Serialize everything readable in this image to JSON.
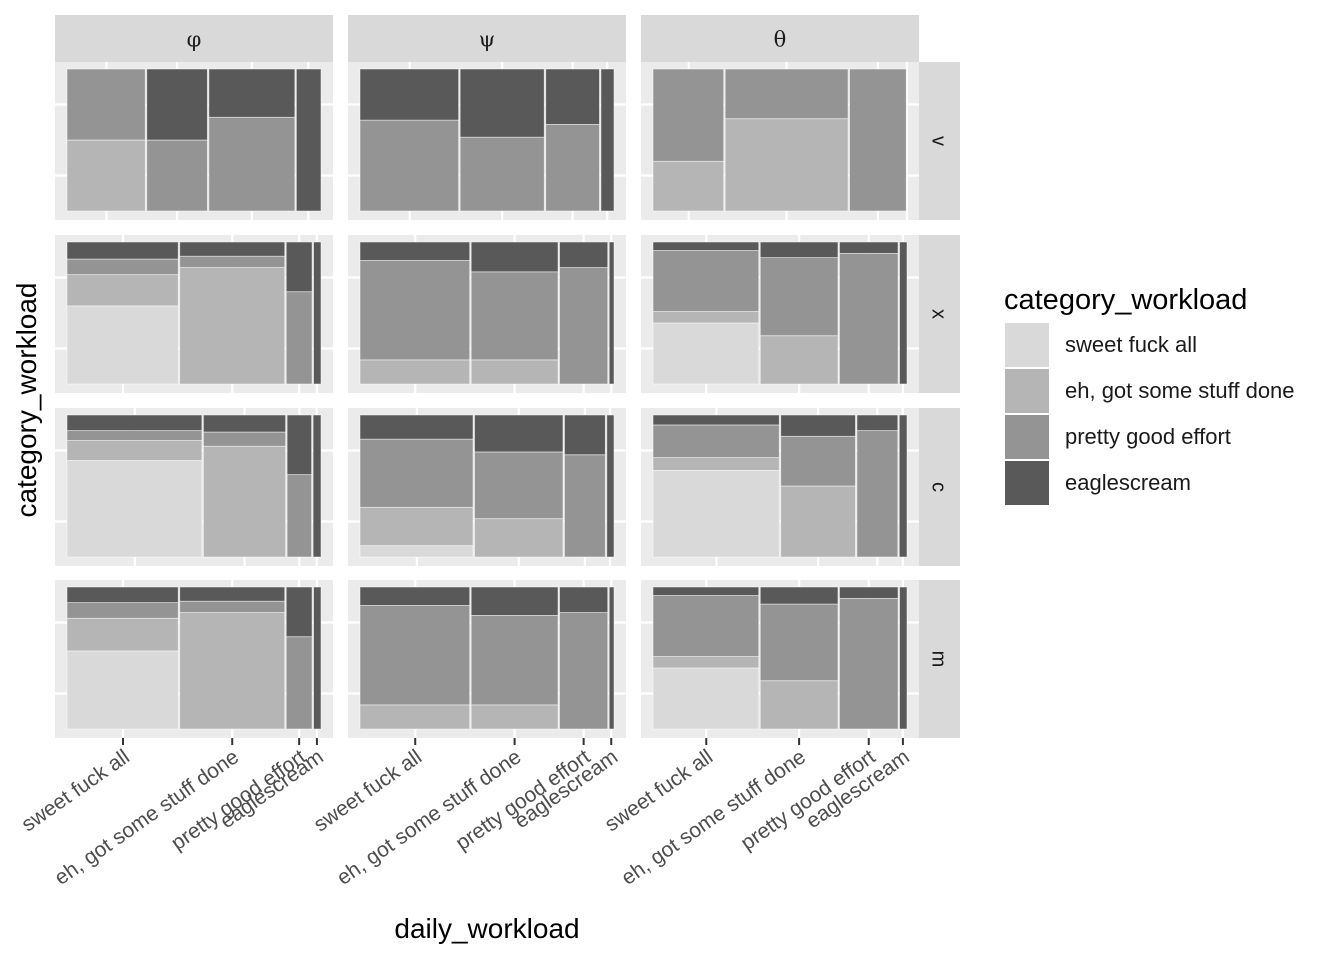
{
  "chart_data": {
    "type": "mosaic",
    "xlabel": "daily_workload",
    "ylabel": "category_workload",
    "legend": {
      "title": "category_workload",
      "position": "right",
      "items": [
        {
          "label": "sweet fuck all",
          "color": "#d9d9d9"
        },
        {
          "label": "eh, got some stuff done",
          "color": "#b5b5b5"
        },
        {
          "label": "pretty good effort",
          "color": "#949494"
        },
        {
          "label": "eaglescream",
          "color": "#595959"
        }
      ]
    },
    "col_facets": [
      "φ",
      "ψ",
      "θ"
    ],
    "row_facets": [
      "v",
      "x",
      "c",
      "m"
    ],
    "categories": [
      "sweet fuck all",
      "eh, got some stuff done",
      "pretty good effort",
      "eaglescream"
    ],
    "panels": [
      {
        "col": "φ",
        "row": "v",
        "x_widths": [
          0.28,
          0.22,
          0.31,
          0.09
        ],
        "y_props": [
          [
            0,
            0.5,
            0.5,
            0
          ],
          [
            0,
            0,
            0.5,
            0.5
          ],
          [
            0,
            0,
            0.66,
            0.34
          ],
          [
            0,
            0,
            0,
            1
          ]
        ]
      },
      {
        "col": "ψ",
        "row": "v",
        "x_widths": [
          0.36,
          0.31,
          0.2,
          0.05
        ],
        "y_props": [
          [
            0,
            0,
            0.64,
            0.36
          ],
          [
            0,
            0,
            0.52,
            0.48
          ],
          [
            0,
            0,
            0.61,
            0.39
          ],
          [
            0,
            0,
            0,
            1
          ]
        ]
      },
      {
        "col": "θ",
        "row": "v",
        "x_widths": [
          0.27,
          0.47,
          0.22,
          0
        ],
        "y_props": [
          [
            0,
            0.35,
            0.65,
            0
          ],
          [
            0,
            0.65,
            0.35,
            0
          ],
          [
            0,
            0,
            1,
            0
          ],
          [
            0,
            0,
            0,
            0
          ]
        ]
      },
      {
        "col": "φ",
        "row": "x",
        "x_widths": [
          0.41,
          0.39,
          0.1,
          0.03
        ],
        "y_props": [
          [
            0.55,
            0.22,
            0.11,
            0.12
          ],
          [
            0,
            0.82,
            0.08,
            0.1
          ],
          [
            0,
            0,
            0.65,
            0.35
          ],
          [
            0,
            0,
            0,
            1
          ]
        ]
      },
      {
        "col": "ψ",
        "row": "x",
        "x_widths": [
          0.4,
          0.32,
          0.18,
          0.02
        ],
        "y_props": [
          [
            0,
            0.17,
            0.7,
            0.13
          ],
          [
            0,
            0.17,
            0.62,
            0.21
          ],
          [
            0,
            0,
            0.82,
            0.18
          ],
          [
            0,
            0,
            0,
            1
          ]
        ]
      },
      {
        "col": "θ",
        "row": "x",
        "x_widths": [
          0.39,
          0.29,
          0.22,
          0.03
        ],
        "y_props": [
          [
            0.43,
            0.08,
            0.43,
            0.06
          ],
          [
            0,
            0.34,
            0.55,
            0.11
          ],
          [
            0,
            0,
            0.92,
            0.08
          ],
          [
            0,
            0,
            0,
            1
          ]
        ]
      },
      {
        "col": "φ",
        "row": "c",
        "x_widths": [
          0.47,
          0.29,
          0.09,
          0.03
        ],
        "y_props": [
          [
            0.68,
            0.14,
            0.07,
            0.11
          ],
          [
            0,
            0.78,
            0.1,
            0.12
          ],
          [
            0,
            0,
            0.58,
            0.42
          ],
          [
            0,
            0,
            0,
            1
          ]
        ]
      },
      {
        "col": "ψ",
        "row": "c",
        "x_widths": [
          0.43,
          0.34,
          0.16,
          0.03
        ],
        "y_props": [
          [
            0.08,
            0.27,
            0.48,
            0.17
          ],
          [
            0,
            0.27,
            0.47,
            0.26
          ],
          [
            0,
            0,
            0.72,
            0.28
          ],
          [
            0,
            0,
            0,
            1
          ]
        ]
      },
      {
        "col": "θ",
        "row": "c",
        "x_widths": [
          0.45,
          0.27,
          0.15,
          0.03
        ],
        "y_props": [
          [
            0.61,
            0.09,
            0.23,
            0.07
          ],
          [
            0,
            0.5,
            0.35,
            0.15
          ],
          [
            0,
            0,
            0.89,
            0.11
          ],
          [
            0,
            0,
            0,
            1
          ]
        ]
      },
      {
        "col": "φ",
        "row": "m",
        "x_widths": [
          0.41,
          0.39,
          0.1,
          0.03
        ],
        "y_props": [
          [
            0.55,
            0.23,
            0.11,
            0.11
          ],
          [
            0,
            0.82,
            0.08,
            0.1
          ],
          [
            0,
            0,
            0.65,
            0.35
          ],
          [
            0,
            0,
            0,
            1
          ]
        ]
      },
      {
        "col": "ψ",
        "row": "m",
        "x_widths": [
          0.4,
          0.32,
          0.18,
          0.02
        ],
        "y_props": [
          [
            0,
            0.17,
            0.7,
            0.13
          ],
          [
            0,
            0.17,
            0.63,
            0.2
          ],
          [
            0,
            0,
            0.82,
            0.18
          ],
          [
            0,
            0,
            0,
            1
          ]
        ]
      },
      {
        "col": "θ",
        "row": "m",
        "x_widths": [
          0.39,
          0.29,
          0.22,
          0.03
        ],
        "y_props": [
          [
            0.43,
            0.08,
            0.43,
            0.06
          ],
          [
            0,
            0.34,
            0.54,
            0.12
          ],
          [
            0,
            0,
            0.92,
            0.08
          ],
          [
            0,
            0,
            0,
            1
          ]
        ]
      }
    ],
    "x_tick_labels": [
      "sweet fuck all",
      "eh, got some stuff done",
      "pretty good effort",
      "eaglescream"
    ],
    "grid": true
  }
}
